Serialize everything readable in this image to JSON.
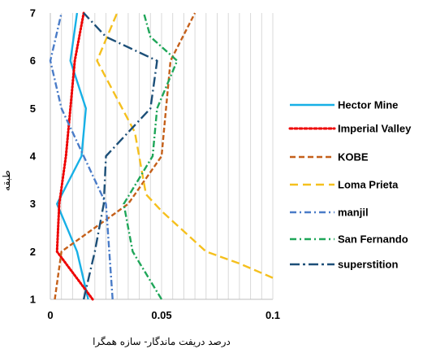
{
  "chart_data": {
    "type": "line",
    "xlabel": "درصد دریفت ماندگار- سازه همگرا",
    "ylabel": "طبقه",
    "xlim": [
      0,
      0.1
    ],
    "ylim": [
      1,
      7
    ],
    "x_ticks": [
      0,
      0.05,
      0.1
    ],
    "x_tick_labels": [
      "0",
      "0.05",
      "0.1"
    ],
    "y_ticks": [
      1,
      2,
      3,
      4,
      5,
      6,
      7
    ],
    "y_tick_labels": [
      "1",
      "2",
      "3",
      "4",
      "5",
      "6",
      "7"
    ],
    "grid": "vertical gridlines every 0.005",
    "legend_position": "right",
    "series": [
      {
        "name": "Hector Mine",
        "color": "#17b0e6",
        "dash": "solid",
        "points": [
          [
            0.017,
            1
          ],
          [
            0.012,
            2
          ],
          [
            0.003,
            3
          ],
          [
            0.014,
            4
          ],
          [
            0.016,
            5
          ],
          [
            0.009,
            6
          ],
          [
            0.012,
            7
          ]
        ]
      },
      {
        "name": "Imperial Valley",
        "color": "#ee0000",
        "dash": "dot",
        "points": [
          [
            0.019,
            1
          ],
          [
            0.003,
            2
          ],
          [
            0.004,
            3
          ],
          [
            0.007,
            4
          ],
          [
            0.009,
            5
          ],
          [
            0.011,
            6
          ],
          [
            0.015,
            7
          ]
        ]
      },
      {
        "name": "KOBE",
        "color": "#c5601a",
        "dash": "dash",
        "points": [
          [
            0.002,
            1
          ],
          [
            0.005,
            2
          ],
          [
            0.035,
            3
          ],
          [
            0.05,
            4
          ],
          [
            0.052,
            5
          ],
          [
            0.054,
            6
          ],
          [
            0.065,
            7
          ]
        ]
      },
      {
        "name": "Loma Prieta",
        "color": "#f5c01e",
        "dash": "longdash",
        "points": [
          [
            0.1,
            1.45
          ],
          [
            0.085,
            1.75
          ],
          [
            0.07,
            2
          ],
          [
            0.05,
            2.85
          ],
          [
            0.043,
            3.2
          ],
          [
            0.038,
            4.5
          ],
          [
            0.021,
            6
          ],
          [
            0.03,
            7
          ]
        ]
      },
      {
        "name": "manjil",
        "color": "#4a7cc8",
        "dash": "dashdot",
        "points": [
          [
            0.028,
            1
          ],
          [
            0.025,
            3
          ],
          [
            0.005,
            5
          ],
          [
            0,
            6
          ],
          [
            0.004,
            6.8
          ],
          [
            0.005,
            7
          ]
        ]
      },
      {
        "name": "San Fernando",
        "color": "#1fa659",
        "dash": "dashdot",
        "points": [
          [
            0.05,
            1
          ],
          [
            0.037,
            2
          ],
          [
            0.033,
            3
          ],
          [
            0.046,
            4
          ],
          [
            0.048,
            5
          ],
          [
            0.057,
            6
          ],
          [
            0.045,
            6.5
          ],
          [
            0.042,
            7
          ]
        ]
      },
      {
        "name": "superstition",
        "color": "#1c4f78",
        "dash": "longdashdot",
        "points": [
          [
            0.015,
            1
          ],
          [
            0.02,
            2
          ],
          [
            0.024,
            3
          ],
          [
            0.025,
            4
          ],
          [
            0.045,
            5
          ],
          [
            0.048,
            6
          ],
          [
            0.025,
            6.5
          ],
          [
            0.015,
            7
          ]
        ]
      }
    ]
  }
}
